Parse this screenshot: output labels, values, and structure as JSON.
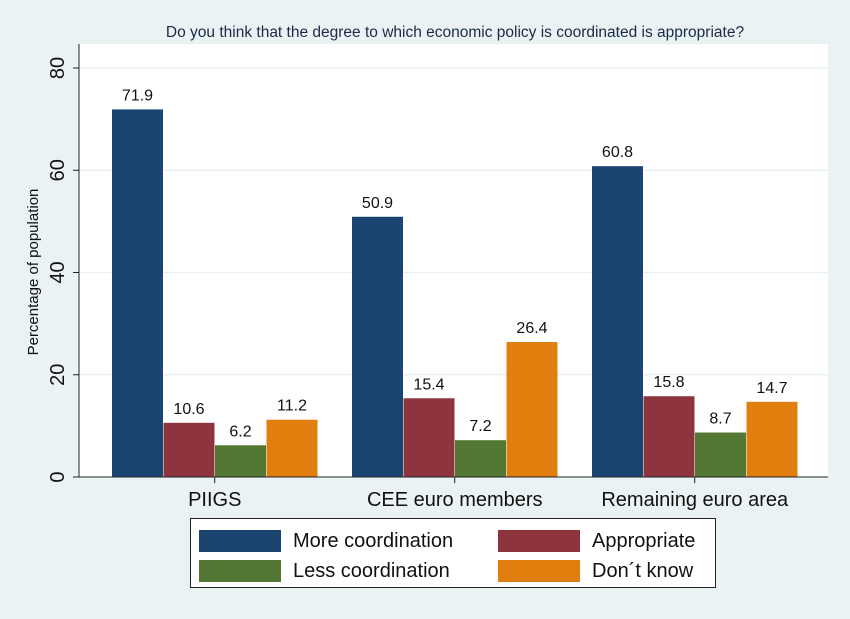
{
  "chart_data": {
    "type": "bar",
    "title": "Do you think that the degree to which economic policy is coordinated is appropriate?",
    "ylabel": "Percentage of population",
    "xlabel": "",
    "ylim": [
      0,
      80
    ],
    "yticks": [
      0,
      20,
      40,
      60,
      80
    ],
    "grid": true,
    "legend_position": "bottom",
    "categories": [
      "PIIGS",
      "CEE euro members",
      "Remaining euro area"
    ],
    "series": [
      {
        "name": "More coordination",
        "color": "#1b4570",
        "values": [
          71.9,
          50.9,
          60.8
        ],
        "labels": [
          "71.9",
          "50.9",
          "60.8"
        ]
      },
      {
        "name": "Appropriate",
        "color": "#8e343d",
        "values": [
          10.6,
          15.4,
          15.8
        ],
        "labels": [
          "10.6",
          "15.4",
          "15.8"
        ]
      },
      {
        "name": "Less coordination",
        "color": "#537833",
        "values": [
          6.2,
          7.2,
          8.7
        ],
        "labels": [
          "6.2",
          "7.2",
          "8.7"
        ]
      },
      {
        "name": "Don´t know",
        "color": "#e07f0e",
        "values": [
          11.2,
          26.4,
          14.7
        ],
        "labels": [
          "11.2",
          "26.4",
          "14.7"
        ]
      }
    ]
  }
}
